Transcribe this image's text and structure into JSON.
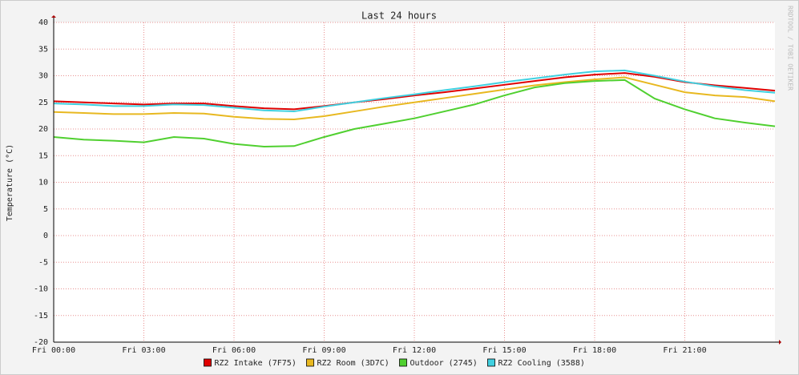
{
  "chart_data": {
    "type": "line",
    "title": "Last 24 hours",
    "y_label": "Temperature (°C)",
    "watermark": "RRDTOOL / TOBI OETIKER",
    "x": [
      0,
      1,
      2,
      3,
      4,
      5,
      6,
      7,
      8,
      9,
      10,
      11,
      12,
      13,
      14,
      15,
      16,
      17,
      18,
      19,
      20,
      21,
      22,
      23,
      24
    ],
    "xlim": [
      0,
      24
    ],
    "xticks": [
      {
        "value": 0,
        "label": "Fri 00:00"
      },
      {
        "value": 3,
        "label": "Fri 03:00"
      },
      {
        "value": 6,
        "label": "Fri 06:00"
      },
      {
        "value": 9,
        "label": "Fri 09:00"
      },
      {
        "value": 12,
        "label": "Fri 12:00"
      },
      {
        "value": 15,
        "label": "Fri 15:00"
      },
      {
        "value": 18,
        "label": "Fri 18:00"
      },
      {
        "value": 21,
        "label": "Fri 21:00"
      }
    ],
    "ylim": [
      -20,
      40
    ],
    "yticks": [
      -20,
      -15,
      -10,
      -5,
      0,
      5,
      10,
      15,
      20,
      25,
      30,
      35,
      40
    ],
    "grid": true,
    "series": [
      {
        "name": "RZ2 Intake (7F75)",
        "color": "#e00000",
        "values": [
          25.2,
          25,
          24.8,
          24.6,
          24.8,
          24.8,
          24.3,
          23.9,
          23.7,
          24.3,
          25,
          25.6,
          26.3,
          26.9,
          27.6,
          28.3,
          29,
          29.7,
          30.2,
          30.5,
          29.8,
          28.8,
          28.2,
          27.7,
          27.2
        ]
      },
      {
        "name": "RZ2 Room (3D7C)",
        "color": "#e8b820",
        "values": [
          23.2,
          23,
          22.8,
          22.8,
          23,
          22.9,
          22.3,
          21.9,
          21.8,
          22.4,
          23.3,
          24.2,
          25,
          25.8,
          26.6,
          27.4,
          28.2,
          28.8,
          29.3,
          29.7,
          28.3,
          26.9,
          26.3,
          26,
          25.2
        ]
      },
      {
        "name": "Outdoor (2745)",
        "color": "#50d030",
        "values": [
          18.5,
          18,
          17.8,
          17.5,
          18.5,
          18.2,
          17.2,
          16.7,
          16.8,
          18.5,
          20,
          21,
          22,
          23.3,
          24.6,
          26.3,
          27.8,
          28.6,
          29,
          29.2,
          25.7,
          23.7,
          22,
          21.2,
          20.5
        ]
      },
      {
        "name": "RZ2 Cooling (3588)",
        "color": "#40d0e0",
        "values": [
          24.8,
          24.6,
          24.3,
          24.3,
          24.6,
          24.5,
          24,
          23.5,
          23.3,
          24.2,
          25,
          25.8,
          26.5,
          27.3,
          28,
          28.8,
          29.5,
          30.2,
          30.8,
          31,
          30,
          28.9,
          28,
          27.3,
          26.8
        ]
      }
    ]
  }
}
